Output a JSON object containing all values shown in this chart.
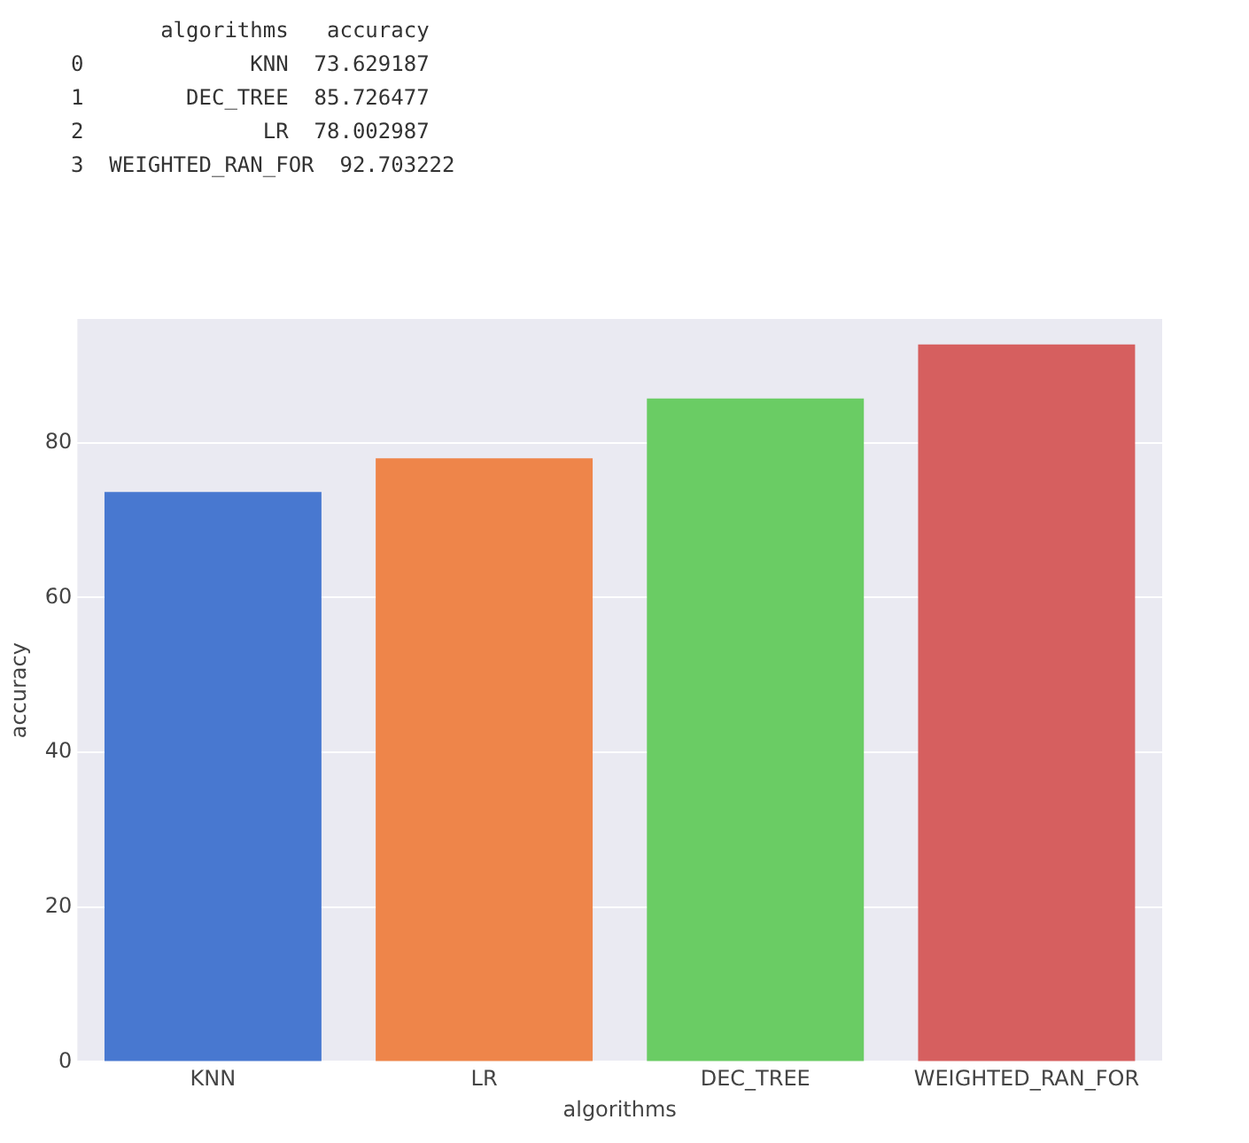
{
  "chart_data": {
    "type": "bar",
    "xlabel": "algorithms",
    "ylabel": "accuracy",
    "categories": [
      "KNN",
      "LR",
      "DEC_TREE",
      "WEIGHTED_RAN_FOR"
    ],
    "values": [
      73.629187,
      78.002987,
      85.726477,
      92.703222
    ],
    "colors": [
      "#4878d0",
      "#ee854a",
      "#6acc64",
      "#d65f5f"
    ],
    "ylim": [
      0,
      96
    ],
    "yticks": [
      0,
      20,
      40,
      60,
      80
    ],
    "grid": "y",
    "legend": false,
    "annotations": [
      "       algorithms   accuracy",
      "0             KNN  73.629187",
      "1        DEC_TREE  85.726477",
      "2              LR  78.002987",
      "3  WEIGHTED_RAN_FOR  92.703222"
    ]
  }
}
